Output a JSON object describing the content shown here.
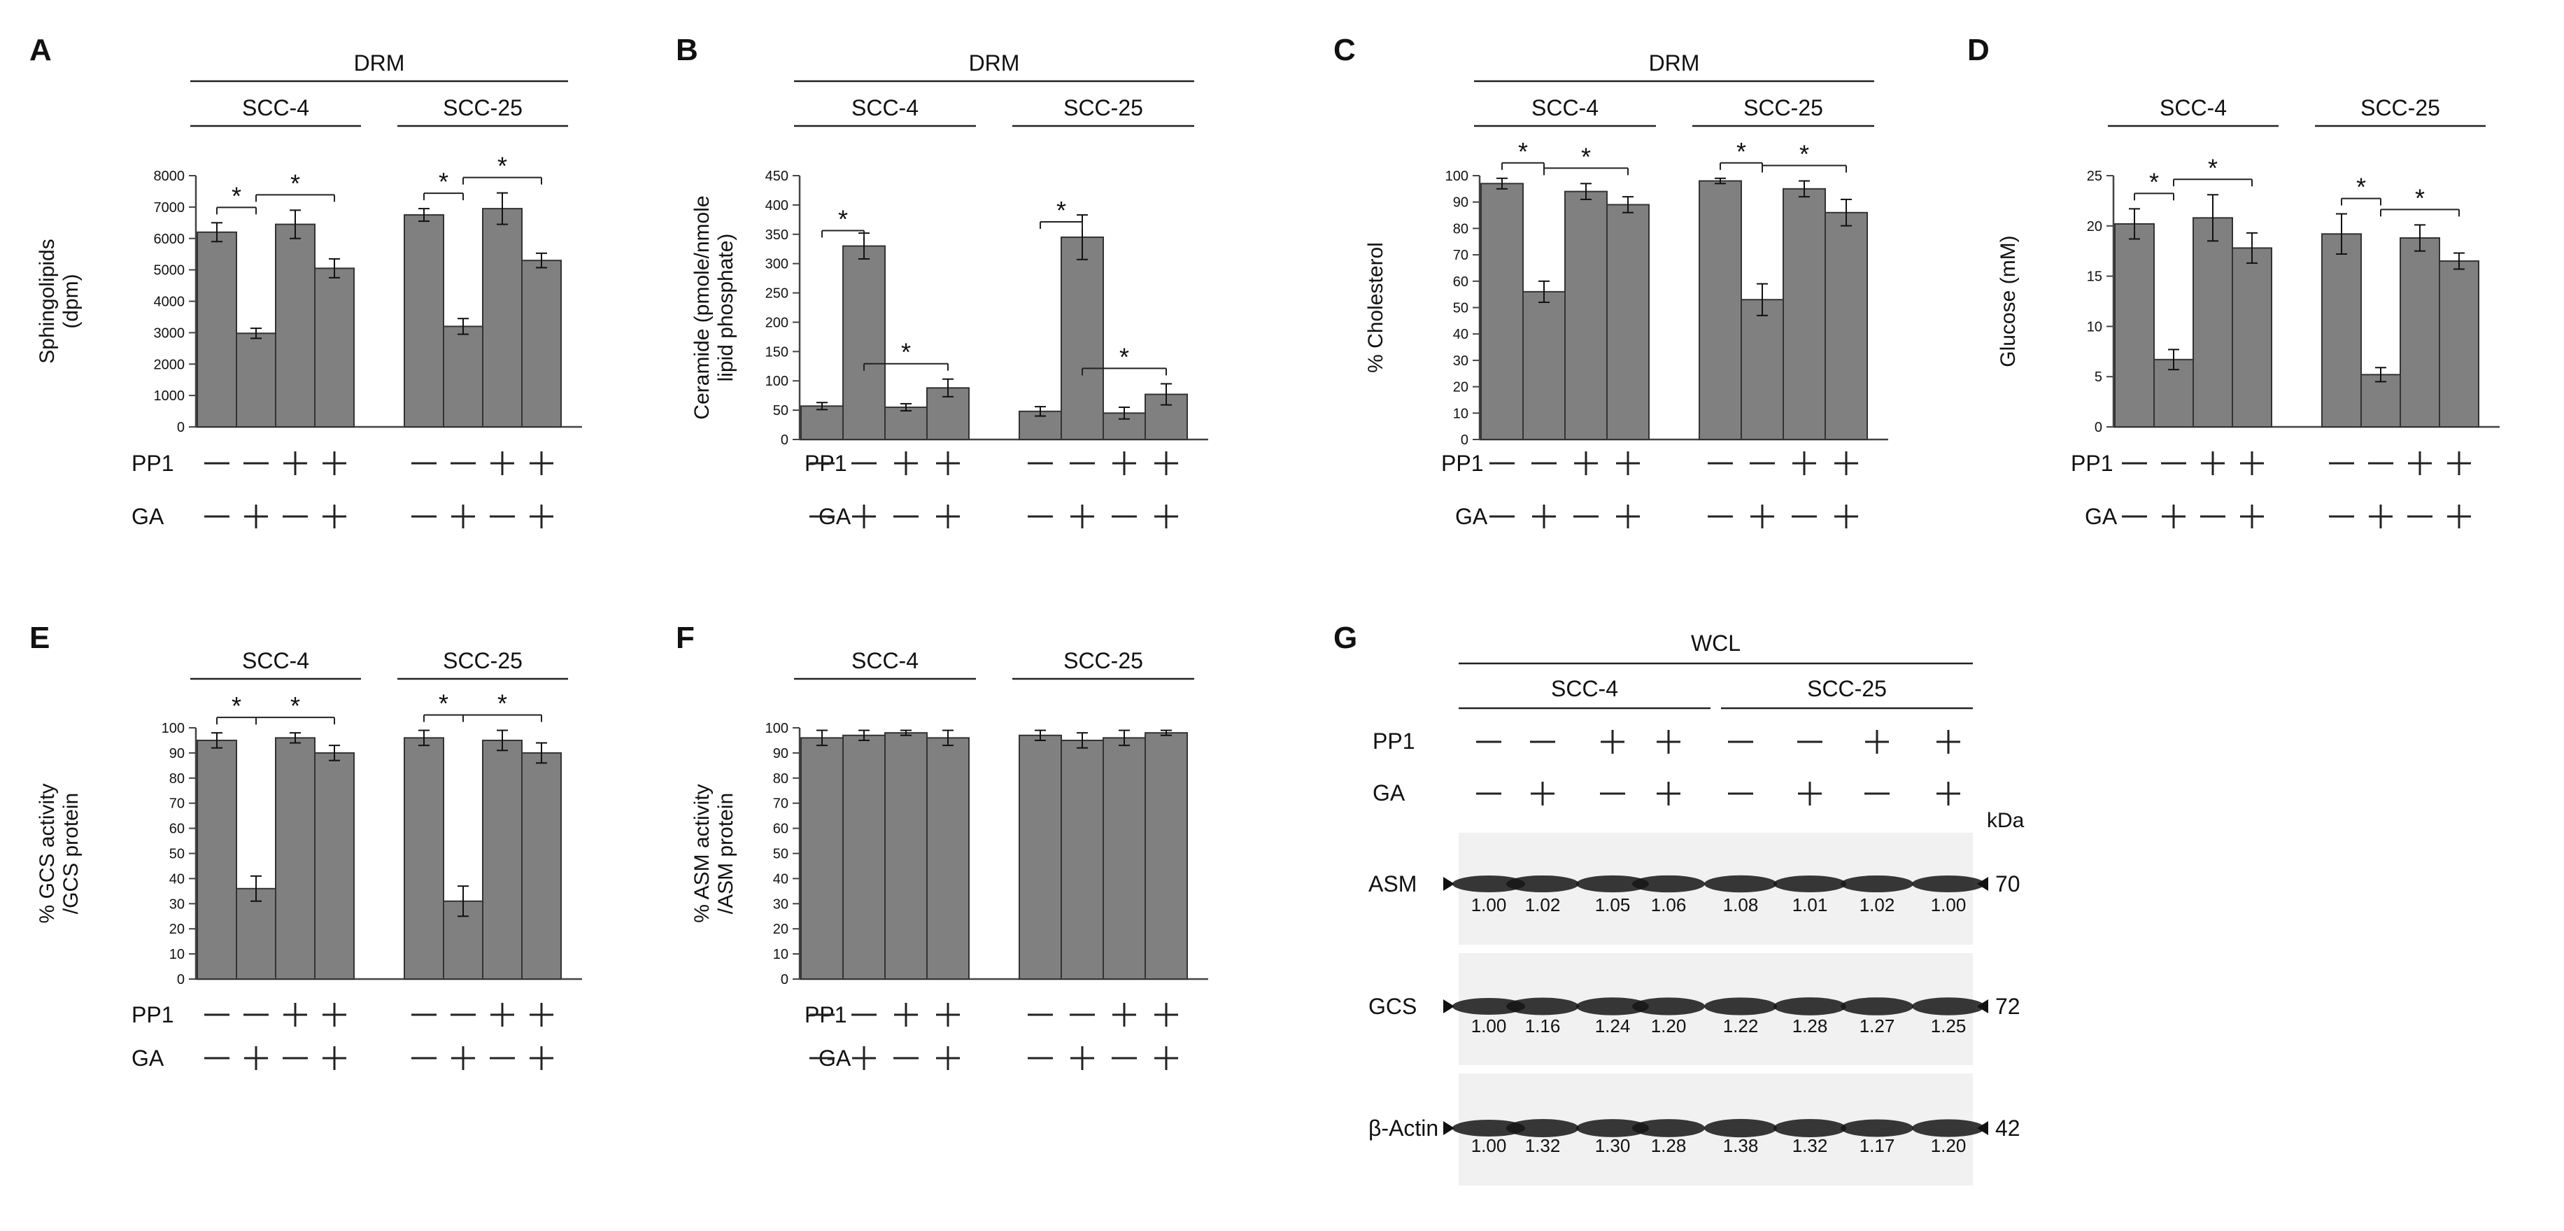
{
  "colors": {
    "bar": "#808080",
    "axis": "#444444",
    "text": "#111111",
    "blot_bg": "#f1f1f1",
    "band": "#151515"
  },
  "row_labels": {
    "pp1": "PP1",
    "ga": "GA"
  },
  "conditions": {
    "pp1": [
      "—",
      "—",
      "+",
      "+",
      "—",
      "—",
      "+",
      "+"
    ],
    "ga": [
      "—",
      "+",
      "—",
      "+",
      "—",
      "+",
      "—",
      "+"
    ]
  },
  "chart_data": [
    {
      "panel": "A",
      "type": "bar",
      "ylabel": [
        "Sphingolipids",
        "(dpm)"
      ],
      "ylim": [
        0,
        8000
      ],
      "yticks": [
        0,
        1000,
        2000,
        3000,
        4000,
        5000,
        6000,
        7000,
        8000
      ],
      "header": "DRM",
      "groups": [
        "SCC-4",
        "SCC-25"
      ],
      "values": [
        [
          6200,
          2980,
          6450,
          5050
        ],
        [
          6750,
          3200,
          6950,
          5300
        ]
      ],
      "errors": [
        [
          300,
          160,
          450,
          300
        ],
        [
          200,
          250,
          500,
          230
        ]
      ],
      "significance": "*"
    },
    {
      "panel": "B",
      "type": "bar",
      "ylabel": [
        "Ceramide (pmole/nmole",
        "lipid phosphate)"
      ],
      "ylim": [
        0,
        450
      ],
      "yticks": [
        0,
        50,
        100,
        150,
        200,
        250,
        300,
        350,
        400,
        450
      ],
      "header": "DRM",
      "groups": [
        "SCC-4",
        "SCC-25"
      ],
      "values": [
        [
          57,
          330,
          55,
          88
        ],
        [
          48,
          345,
          45,
          77
        ]
      ],
      "errors": [
        [
          6,
          22,
          6,
          15
        ],
        [
          8,
          38,
          10,
          18
        ]
      ],
      "significance": "*"
    },
    {
      "panel": "C",
      "type": "bar",
      "ylabel": [
        "% Cholesterol"
      ],
      "ylim": [
        0,
        100
      ],
      "yticks": [
        0,
        10,
        20,
        30,
        40,
        50,
        60,
        70,
        80,
        90,
        100
      ],
      "header": "DRM",
      "groups": [
        "SCC-4",
        "SCC-25"
      ],
      "values": [
        [
          97,
          56,
          94,
          89
        ],
        [
          98,
          53,
          95,
          86
        ]
      ],
      "errors": [
        [
          2,
          4,
          3,
          3
        ],
        [
          1,
          6,
          3,
          5
        ]
      ],
      "significance": "*"
    },
    {
      "panel": "D",
      "type": "bar",
      "ylabel": [
        "Glucose (mM)"
      ],
      "ylim": [
        0,
        25
      ],
      "yticks": [
        0,
        5,
        10,
        15,
        20,
        25
      ],
      "header": "",
      "groups": [
        "SCC-4",
        "SCC-25"
      ],
      "values": [
        [
          20.2,
          6.7,
          20.8,
          17.8
        ],
        [
          19.2,
          5.2,
          18.8,
          16.5
        ]
      ],
      "errors": [
        [
          1.5,
          1,
          2.3,
          1.5
        ],
        [
          2,
          0.7,
          1.3,
          0.8
        ]
      ],
      "significance": "*"
    },
    {
      "panel": "E",
      "type": "bar",
      "ylabel": [
        "% GCS activity",
        "/GCS protein"
      ],
      "ylim": [
        0,
        100
      ],
      "yticks": [
        0,
        10,
        20,
        30,
        40,
        50,
        60,
        70,
        80,
        90,
        100
      ],
      "header": "",
      "groups": [
        "SCC-4",
        "SCC-25"
      ],
      "values": [
        [
          95,
          36,
          96,
          90
        ],
        [
          96,
          31,
          95,
          90
        ]
      ],
      "errors": [
        [
          3,
          5,
          2,
          3
        ],
        [
          3,
          6,
          4,
          4
        ]
      ],
      "significance": "*"
    },
    {
      "panel": "F",
      "type": "bar",
      "ylabel": [
        "% ASM activity",
        "/ASM protein"
      ],
      "ylim": [
        0,
        100
      ],
      "yticks": [
        0,
        10,
        20,
        30,
        40,
        50,
        60,
        70,
        80,
        90,
        100
      ],
      "header": "",
      "groups": [
        "SCC-4",
        "SCC-25"
      ],
      "values": [
        [
          96,
          97,
          98,
          96
        ],
        [
          97,
          95,
          96,
          98
        ]
      ],
      "errors": [
        [
          3,
          2,
          1,
          3
        ],
        [
          2,
          3,
          3,
          1
        ]
      ],
      "significance": ""
    }
  ],
  "western_blot": {
    "panel": "G",
    "header": "WCL",
    "groups": [
      "SCC-4",
      "SCC-25"
    ],
    "kda_label": "kDa",
    "blots": [
      {
        "name": "ASM",
        "kda": "70",
        "values": [
          "1.00",
          "1.02",
          "1.05",
          "1.06",
          "1.08",
          "1.01",
          "1.02",
          "1.00"
        ]
      },
      {
        "name": "GCS",
        "kda": "72",
        "values": [
          "1.00",
          "1.16",
          "1.24",
          "1.20",
          "1.22",
          "1.28",
          "1.27",
          "1.25"
        ]
      },
      {
        "name": "β-Actin",
        "kda": "42",
        "values": [
          "1.00",
          "1.32",
          "1.30",
          "1.28",
          "1.38",
          "1.32",
          "1.17",
          "1.20"
        ]
      }
    ]
  }
}
